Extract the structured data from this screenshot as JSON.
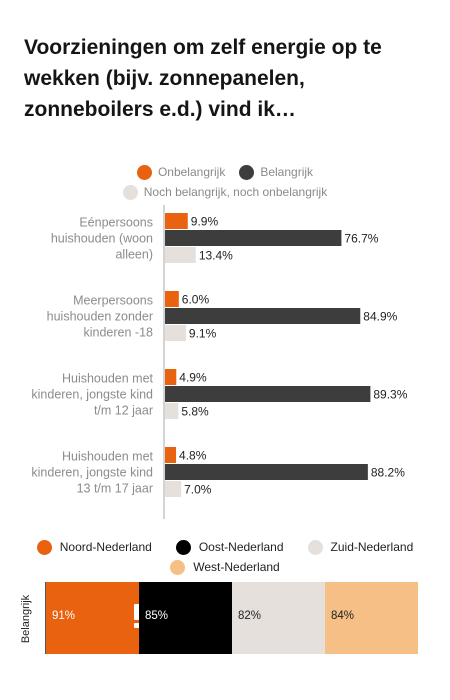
{
  "title": "Voorzieningen om zelf energie op te wekken (bijv. zonnepanelen, zonneboilers e.d.) vind ik…",
  "colors": {
    "orange": "#e8620f",
    "dark": "#3d3d3d",
    "light": "#e6e0dc",
    "black": "#000000",
    "peach": "#f5bf85"
  },
  "legend": {
    "items": [
      {
        "label": "Onbelangrijk",
        "color": "#e8620f"
      },
      {
        "label": "Belangrijk",
        "color": "#3d3d3d"
      },
      {
        "label": "Noch belangrijk, noch onbelangrijk",
        "color": "#e6e0dc"
      }
    ]
  },
  "chart_data": [
    {
      "type": "bar",
      "orientation": "horizontal",
      "title": "Voorzieningen om zelf energie op te wekken (bijv. zonnepanelen, zonneboilers e.d.) vind ik…",
      "categories": [
        [
          "Eénpersoons",
          "huishouden (woon",
          "alleen)"
        ],
        [
          "Meerpersoons",
          "huishouden zonder",
          "kinderen -18"
        ],
        [
          "Huishouden met",
          "kinderen, jongste kind",
          "t/m 12 jaar"
        ],
        [
          "Huishouden met",
          "kinderen, jongste kind",
          "13 t/m 17 jaar"
        ]
      ],
      "series": [
        {
          "name": "Onbelangrijk",
          "color": "#e8620f",
          "values": [
            9.9,
            6.0,
            4.9,
            4.8
          ],
          "labels": [
            "9.9%",
            "6.0%",
            "4.9%",
            "4.8%"
          ]
        },
        {
          "name": "Belangrijk",
          "color": "#3d3d3d",
          "values": [
            76.7,
            84.9,
            89.3,
            88.2
          ],
          "labels": [
            "76.7%",
            "84.9%",
            "89.3%",
            "88.2%"
          ]
        },
        {
          "name": "Noch belangrijk, noch onbelangrijk",
          "color": "#e6e0dc",
          "values": [
            13.4,
            9.1,
            5.8,
            7.0
          ],
          "labels": [
            "13.4%",
            "9.1%",
            "5.8%",
            "7.0%"
          ]
        }
      ],
      "xlim": [
        0,
        100
      ],
      "grid": false,
      "legend_position": "top"
    },
    {
      "type": "bar",
      "orientation": "horizontal",
      "ylabel": "Belangrijk",
      "categories": [
        "Noord-Nederland",
        "Oost-Nederland",
        "Zuid-Nederland",
        "West-Nederland"
      ],
      "values": [
        91,
        85,
        82,
        84
      ],
      "labels": [
        "91%",
        "85%",
        "82%",
        "84%"
      ],
      "colors": [
        "#e8620f",
        "#000000",
        "#e6e0dc",
        "#f5bf85"
      ],
      "legend_position": "top",
      "annotation_icon": "exclamation-icon"
    }
  ],
  "legend2": {
    "items": [
      {
        "label": "Noord-Nederland",
        "color": "#e8620f"
      },
      {
        "label": "Oost-Nederland",
        "color": "#000000"
      },
      {
        "label": "Zuid-Nederland",
        "color": "#e6e0dc"
      },
      {
        "label": "West-Nederland",
        "color": "#f5bf85"
      }
    ]
  },
  "strip": {
    "ylabel": "Belangrijk",
    "segments": [
      {
        "label": "91%",
        "color": "#e8620f",
        "text_color": "#ffffff"
      },
      {
        "label": "85%",
        "color": "#000000",
        "text_color": "#ffffff"
      },
      {
        "label": "82%",
        "color": "#e6e0dc",
        "text_color": "#222222"
      },
      {
        "label": "84%",
        "color": "#f5bf85",
        "text_color": "#222222"
      }
    ]
  }
}
